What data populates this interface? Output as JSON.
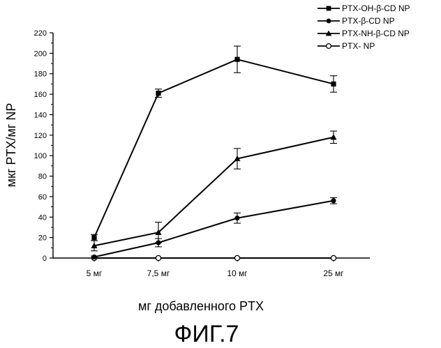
{
  "chart_data": {
    "type": "line",
    "categories": [
      "5 мг",
      "7,5 мг",
      "10 мг",
      "25 мг"
    ],
    "series": [
      {
        "name": "PTX-OH-β-CD NP",
        "marker": "square",
        "values": [
          20,
          161,
          194,
          170
        ],
        "errors": [
          3,
          4,
          13,
          8
        ]
      },
      {
        "name": "PTX-β-CD NP",
        "marker": "circle",
        "values": [
          1,
          15,
          39,
          56
        ],
        "errors": [
          1,
          4,
          5,
          3
        ]
      },
      {
        "name": "PTX-NH-β-CD NP",
        "marker": "triangle",
        "values": [
          12,
          25,
          97,
          118
        ],
        "errors": [
          5,
          10,
          10,
          6
        ]
      },
      {
        "name": "PTX- NP",
        "marker": "circle-open",
        "values": [
          0,
          0,
          0,
          0
        ],
        "errors": [
          0,
          0,
          0,
          0
        ]
      }
    ],
    "ylabel": "мкг PTX/мг NP",
    "xlabel": "мг добавленного PTX",
    "ylim": [
      0,
      220
    ],
    "yticks": [
      0,
      20,
      40,
      60,
      80,
      100,
      120,
      140,
      160,
      180,
      200,
      220
    ],
    "grid": false,
    "legend_position": "top-right"
  },
  "figure_caption": "ФИГ.7",
  "colors": {
    "ink": "#000000",
    "background": "#ffffff"
  }
}
